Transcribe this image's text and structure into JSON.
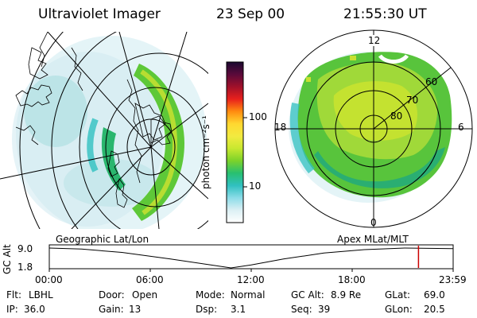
{
  "header": {
    "instrument": "Ultraviolet Imager",
    "date": "23 Sep 00",
    "time": "21:55:30 UT"
  },
  "colorbar": {
    "unit_label": "photon cm⁻²s⁻¹",
    "ticks": [
      "100",
      "10"
    ],
    "stops": [
      "#1a0830",
      "#5a0a3a",
      "#a0102a",
      "#e8201c",
      "#ff8c10",
      "#ffd830",
      "#f2ea40",
      "#c8e830",
      "#7cd22a",
      "#28c070",
      "#30c0c0",
      "#8cdce8",
      "#dcf0f4",
      "#ffffff"
    ]
  },
  "right_map": {
    "labels": [
      "12",
      "18",
      "6",
      "0",
      "60",
      "70",
      "80"
    ]
  },
  "panels": {
    "left_label": "Geographic Lat/Lon",
    "right_label": "Apex MLat/MLT"
  },
  "altitude_plot": {
    "ylabel": "GC Alt",
    "yticks": [
      "9.0",
      "1.8"
    ],
    "xticks": [
      "00:00",
      "06:00",
      "12:00",
      "18:00",
      "23:59"
    ],
    "marker_time": "21:55:30",
    "marker_color": "#cc0000"
  },
  "info": {
    "row1": [
      {
        "label": "Flt:",
        "value": "LBHL"
      },
      {
        "label": "Door:",
        "value": "Open"
      },
      {
        "label": "Mode:",
        "value": "Normal"
      },
      {
        "label": "GC Alt:",
        "value": "8.9 Re"
      },
      {
        "label": "GLat:",
        "value": "69.0"
      }
    ],
    "row2": [
      {
        "label": "IP:",
        "value": "36.0"
      },
      {
        "label": "Gain:",
        "value": "13"
      },
      {
        "label": "Dsp:",
        "value": "3.1"
      },
      {
        "label": "Seq:",
        "value": "39"
      },
      {
        "label": "GLon:",
        "value": "20.5"
      }
    ]
  }
}
